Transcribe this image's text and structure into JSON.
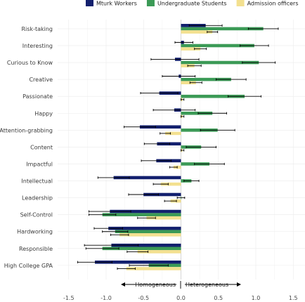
{
  "chart_data": {
    "type": "bar",
    "orientation": "horizontal",
    "legend_position": "top",
    "grid": true,
    "xlim": [
      -1.55,
      1.65
    ],
    "x_ticks": [
      -1.5,
      -1.0,
      -0.5,
      0.0,
      0.5,
      1.0,
      1.5
    ],
    "x_tick_labels": [
      "-1.5",
      "-1.0",
      "-0.5",
      "0.0",
      "0.5",
      "1.0",
      "1.5"
    ],
    "categories": [
      "Risk-taking",
      "Interesting",
      "Curious to Know",
      "Creative",
      "Passionate",
      "Happy",
      "Attention-grabbing",
      "Content",
      "Impactful",
      "Intellectual",
      "Leadership",
      "Self-Control",
      "Hardworking",
      "Responsible",
      "High College GPA"
    ],
    "series": [
      {
        "name": "Mturk Workers",
        "color": "#13206e",
        "values": [
          0.33,
          0.04,
          -0.08,
          -0.03,
          -0.29,
          -0.09,
          -0.55,
          -0.32,
          -0.33,
          -0.9,
          -0.5,
          -0.95,
          -0.97,
          -0.93,
          -1.15
        ],
        "error": [
          0.22,
          0.12,
          0.32,
          0.22,
          0.25,
          0.28,
          0.21,
          0.17,
          0.2,
          0.21,
          0.2,
          0.28,
          0.19,
          0.36,
          0.23
        ]
      },
      {
        "name": "Undergraduate Students",
        "color": "#3b9a56",
        "values": [
          1.1,
          0.98,
          1.04,
          0.67,
          0.85,
          0.42,
          0.49,
          0.27,
          0.38,
          0.14,
          0.0,
          -1.05,
          -0.88,
          -1.05,
          -0.43
        ],
        "error": [
          0.2,
          0.19,
          0.22,
          0.2,
          0.22,
          0.19,
          0.23,
          0.2,
          0.2,
          0.1,
          0.05,
          0.18,
          0.17,
          0.22,
          0.26
        ]
      },
      {
        "name": "Admission officers",
        "color": "#f3e08f",
        "values": [
          0.42,
          0.26,
          0.18,
          0.2,
          0.02,
          0.02,
          -0.21,
          0.02,
          -0.1,
          -0.27,
          -0.14,
          -0.46,
          -0.82,
          -0.58,
          -0.73
        ],
        "error": [
          0.07,
          0.08,
          0.09,
          0.08,
          0.02,
          0.02,
          0.07,
          0.02,
          0.05,
          0.1,
          0.08,
          0.12,
          0.12,
          0.14,
          0.12
        ]
      }
    ],
    "annotations": {
      "left_arrow_label": "Homogeneous",
      "right_arrow_label": "Heterogeneous"
    }
  }
}
